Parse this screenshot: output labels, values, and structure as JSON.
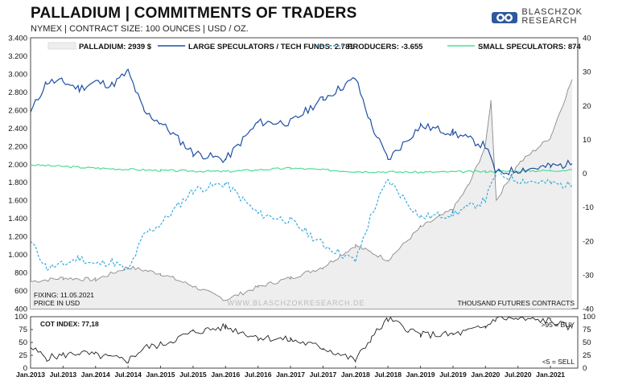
{
  "header": {
    "title": "PALLADIUM | COMMITMENTS OF TRADERS",
    "subtitle": "NYMEX | CONTRACT SIZE: 100 OUNCES | USD / OZ.",
    "brand_line1": "BLASCHZOK",
    "brand_line2": "RESEARCH"
  },
  "notes": {
    "fixing": "FIXING: 11.05.2021",
    "price_unit": "PRICE IN USD",
    "watermark": "WWW.BLASCHZOKRESEARCH.DE",
    "contracts_label": "THOUSAND FUTURES CONTRACTS"
  },
  "colors": {
    "price_line": "#8a8a8a",
    "price_fill": "#eeeeee",
    "large_specs": "#1f4fa3",
    "producers": "#29a6dc",
    "small_specs": "#4fdc98",
    "cot_index": "#222222",
    "cot_index_label": "#1f4fa3"
  },
  "chart_data": [
    {
      "type": "line",
      "title": "PALLADIUM | COMMITMENTS OF TRADERS",
      "x_labels": [
        "Jan.2013",
        "Jul.2013",
        "Jan.2014",
        "Jul.2014",
        "Jan.2015",
        "Jul.2015",
        "Jan.2016",
        "Jul.2016",
        "Jan.2017",
        "Jul.2017",
        "Jan.2018",
        "Jul.2018",
        "Jan.2019",
        "Jul.2019",
        "Jan.2020",
        "Jul.2020",
        "Jan.2021"
      ],
      "y_left": {
        "label": "",
        "unit": "USD",
        "lim": [
          400,
          3400
        ],
        "ticks": [
          400,
          600,
          800,
          1000,
          1200,
          1400,
          1600,
          1800,
          2000,
          2200,
          2400,
          2600,
          2800,
          3000,
          3200,
          3400
        ]
      },
      "y_right": {
        "label": "THOUSAND FUTURES CONTRACTS",
        "lim": [
          -40,
          40
        ],
        "ticks": [
          -40,
          -30,
          -20,
          -10,
          0,
          10,
          20,
          30,
          40
        ]
      },
      "legend": [
        {
          "name": "PALLADIUM: 2939 $",
          "style": "area"
        },
        {
          "name": "LARGE SPECULATORS / TECH FUNDS: 2.781",
          "style": "solid"
        },
        {
          "name": "PRODUCERS: -3.655",
          "style": "dashed"
        },
        {
          "name": "SMALL SPECULATORS: 874",
          "style": "solid"
        }
      ],
      "series": [
        {
          "key": "price",
          "axis": "left",
          "x": [
            "2013-01",
            "2013-07",
            "2014-01",
            "2014-07",
            "2015-01",
            "2015-07",
            "2016-01",
            "2016-07",
            "2017-01",
            "2017-07",
            "2018-01",
            "2018-07",
            "2019-01",
            "2019-07",
            "2019-10",
            "2020-01",
            "2020-02",
            "2020-03",
            "2020-07",
            "2021-01",
            "2021-05"
          ],
          "values": [
            700,
            740,
            720,
            860,
            790,
            650,
            500,
            640,
            740,
            860,
            1100,
            940,
            1300,
            1500,
            1780,
            2200,
            2700,
            1600,
            2000,
            2300,
            2939
          ]
        },
        {
          "key": "large_specs",
          "axis": "right",
          "x": [
            "2013-01",
            "2013-04",
            "2013-07",
            "2013-10",
            "2014-01",
            "2014-04",
            "2014-07",
            "2014-10",
            "2015-01",
            "2015-07",
            "2016-01",
            "2016-07",
            "2017-01",
            "2017-07",
            "2018-01",
            "2018-04",
            "2018-07",
            "2019-01",
            "2019-07",
            "2020-01",
            "2020-03",
            "2020-07",
            "2021-01",
            "2021-05"
          ],
          "values": [
            18,
            27,
            27,
            25,
            27,
            26,
            30,
            18,
            15,
            6,
            4,
            15,
            15,
            22,
            28,
            14,
            4,
            14,
            12,
            8,
            0,
            1,
            2,
            2.8
          ]
        },
        {
          "key": "producers",
          "axis": "right",
          "x": [
            "2013-01",
            "2013-04",
            "2013-07",
            "2013-10",
            "2014-01",
            "2014-04",
            "2014-07",
            "2014-10",
            "2015-01",
            "2015-07",
            "2016-01",
            "2016-07",
            "2017-01",
            "2017-07",
            "2018-01",
            "2018-04",
            "2018-07",
            "2019-01",
            "2019-07",
            "2020-01",
            "2020-03",
            "2020-07",
            "2021-01",
            "2021-05"
          ],
          "values": [
            -20,
            -28,
            -27,
            -25,
            -27,
            -26,
            -29,
            -18,
            -15,
            -5,
            -3,
            -12,
            -14,
            -21,
            -26,
            -12,
            -2,
            -13,
            -12,
            -8,
            0,
            -2,
            -3,
            -3.7
          ]
        },
        {
          "key": "small_specs",
          "axis": "right",
          "x": [
            "2013-01",
            "2014-01",
            "2015-01",
            "2016-01",
            "2017-01",
            "2018-01",
            "2019-01",
            "2020-01",
            "2021-01",
            "2021-05"
          ],
          "values": [
            2.5,
            1.5,
            0.8,
            0.5,
            1.5,
            0.5,
            0.3,
            0.5,
            0.8,
            0.9
          ]
        }
      ]
    },
    {
      "type": "line",
      "title": "COT INDEX: 77,18",
      "ylim": [
        0,
        100
      ],
      "ticks": [
        0,
        25,
        50,
        75,
        100
      ],
      "thresholds": {
        "buy": {
          "value": 95,
          "label": ">95 = BUY"
        },
        "sell": {
          "value": 5,
          "label": "<5 = SELL"
        }
      },
      "series": [
        {
          "name": "COT INDEX",
          "x": [
            "2013-01",
            "2013-04",
            "2013-07",
            "2013-10",
            "2014-01",
            "2014-04",
            "2014-07",
            "2014-10",
            "2015-01",
            "2015-07",
            "2016-01",
            "2016-07",
            "2017-01",
            "2017-07",
            "2018-01",
            "2018-04",
            "2018-07",
            "2019-01",
            "2019-07",
            "2020-01",
            "2020-03",
            "2020-07",
            "2021-01",
            "2021-05"
          ],
          "values": [
            40,
            20,
            25,
            30,
            25,
            20,
            15,
            40,
            45,
            70,
            80,
            60,
            55,
            40,
            15,
            60,
            95,
            65,
            65,
            80,
            98,
            95,
            92,
            77.18
          ]
        }
      ]
    }
  ]
}
